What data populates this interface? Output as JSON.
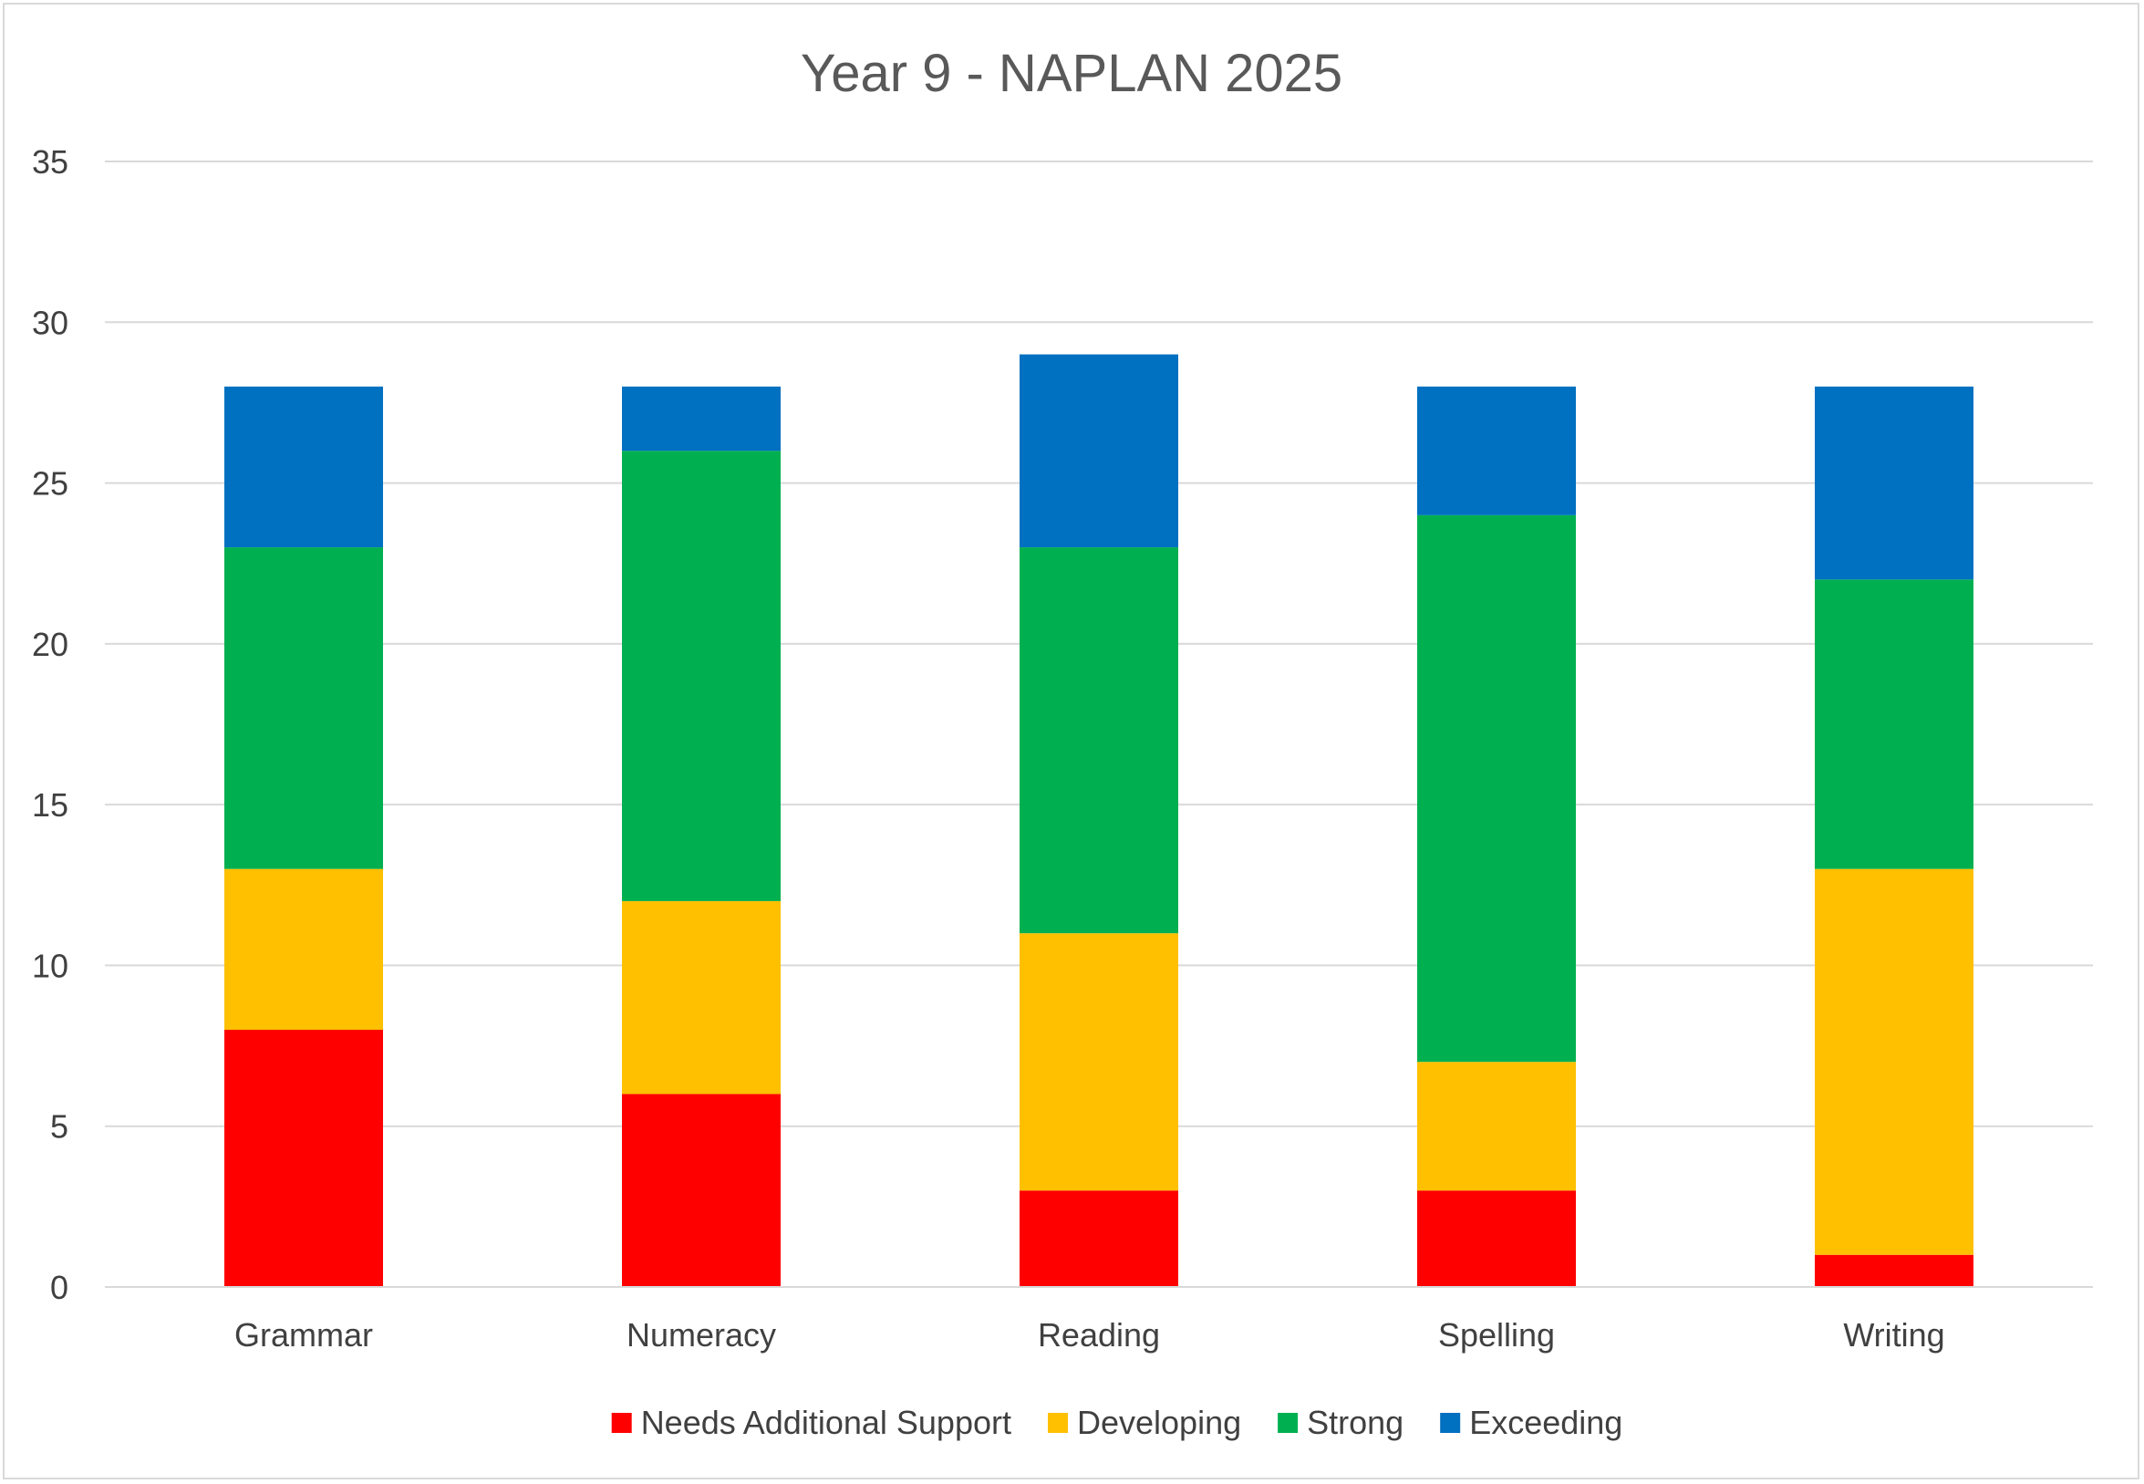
{
  "chart_data": {
    "type": "bar",
    "stacked": true,
    "title": "Year 9 - NAPLAN 2025",
    "categories": [
      "Grammar",
      "Numeracy",
      "Reading",
      "Spelling",
      "Writing"
    ],
    "series": [
      {
        "name": "Needs Additional Support",
        "color": "#FF0000",
        "values": [
          8,
          6,
          3,
          3,
          1
        ]
      },
      {
        "name": "Developing",
        "color": "#FFC000",
        "values": [
          5,
          6,
          8,
          4,
          12
        ]
      },
      {
        "name": "Strong",
        "color": "#00B050",
        "values": [
          10,
          14,
          12,
          17,
          9
        ]
      },
      {
        "name": "Exceeding",
        "color": "#0070C0",
        "values": [
          5,
          2,
          6,
          4,
          6
        ]
      }
    ],
    "yticks": [
      0,
      5,
      10,
      15,
      20,
      25,
      30,
      35
    ],
    "ylim": [
      0,
      35
    ],
    "grid": true,
    "legend_position": "bottom"
  }
}
